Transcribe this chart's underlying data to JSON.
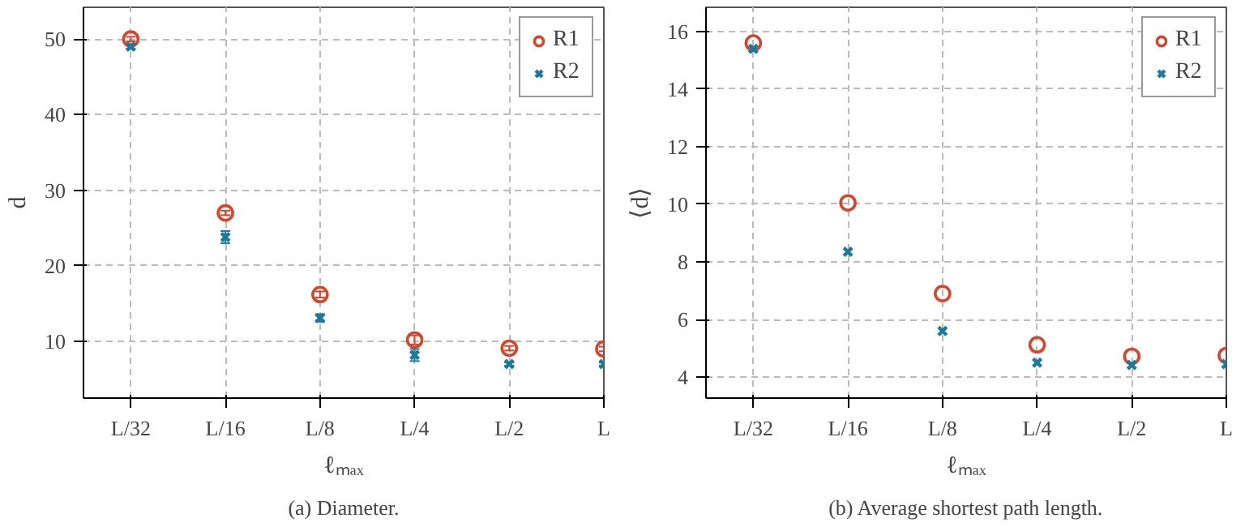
{
  "chart_data": [
    {
      "type": "scatter",
      "title": "(a) Diameter.",
      "xlabel": "ℓₘₐₓ",
      "ylabel": "d",
      "categories": [
        "L/32",
        "L/16",
        "L/8",
        "L/4",
        "L/2",
        "L"
      ],
      "ylim": [
        2.5,
        54.2
      ],
      "yticks": [
        10,
        20,
        30,
        40,
        50
      ],
      "grid": true,
      "legend": "top right",
      "series": [
        {
          "name": "R1",
          "color": "#d4452a",
          "marker": "circle",
          "values": [
            50,
            27,
            16.2,
            10.2,
            9.1,
            9.0
          ],
          "errors": [
            0.3,
            0.3,
            0.4,
            0.6,
            0.3,
            0.3
          ]
        },
        {
          "name": "R2",
          "color": "#1a7a9e",
          "marker": "cross",
          "values": [
            49,
            23.8,
            13.1,
            8.2,
            7.0,
            7.0
          ],
          "errors": [
            0.3,
            0.8,
            0.5,
            0.8,
            0.2,
            0.2
          ]
        }
      ]
    },
    {
      "type": "scatter",
      "title": "(b) Average shortest path length.",
      "xlabel": "ℓₘₐₓ",
      "ylabel": "⟨d⟩",
      "categories": [
        "L/32",
        "L/16",
        "L/8",
        "L/4",
        "L/2",
        "L"
      ],
      "ylim": [
        3.27,
        16.84
      ],
      "yticks": [
        4,
        6,
        8,
        10,
        12,
        14,
        16
      ],
      "grid": true,
      "legend": "top right",
      "series": [
        {
          "name": "R1",
          "color": "#d4452a",
          "marker": "circle",
          "values": [
            15.6,
            10.05,
            6.9,
            5.12,
            4.72,
            4.75
          ]
        },
        {
          "name": "R2",
          "color": "#1a7a9e",
          "marker": "cross",
          "values": [
            15.4,
            8.35,
            5.6,
            4.5,
            4.42,
            4.45
          ]
        }
      ]
    }
  ]
}
